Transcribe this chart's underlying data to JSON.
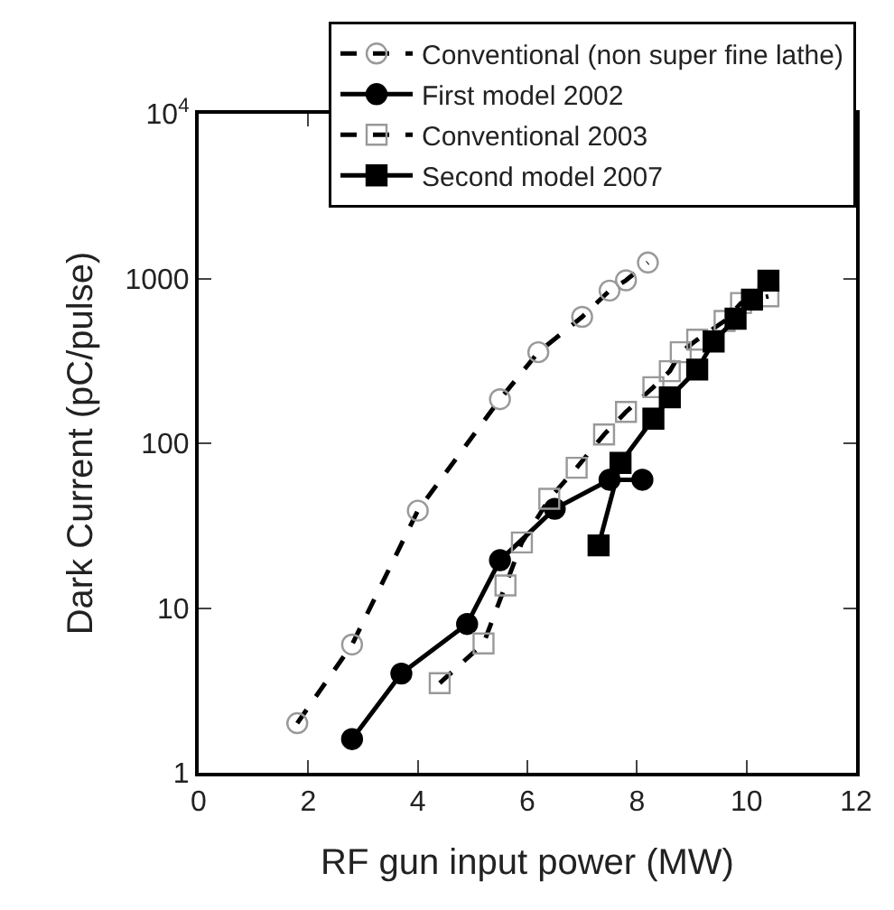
{
  "chart_data": {
    "type": "line",
    "xlabel": "RF gun input power (MW)",
    "ylabel": "Dark Current (pC/pulse)",
    "log": "y",
    "xlim": [
      0,
      12
    ],
    "xticks": [
      0,
      2,
      4,
      6,
      8,
      10,
      12
    ],
    "ylim": [
      1,
      10000
    ],
    "yticks": [
      1,
      10,
      100,
      1000,
      {
        "value": 10000,
        "label": "10$^{4}$"
      }
    ],
    "legend": "top right",
    "series": [
      {
        "name": "Conventional (non super fine lathe)",
        "color": "#000000",
        "marker": "circle",
        "line_style": "dashed",
        "x": [
          1.8,
          2.8,
          4.0,
          5.5,
          6.2,
          7.0,
          7.5,
          7.8,
          8.2
        ],
        "values": [
          2,
          6,
          39,
          185,
          357,
          585,
          845,
          975,
          1250
        ]
      },
      {
        "name": "First model 2002",
        "color": "#000000",
        "marker": "circle",
        "line_style": "solid",
        "x": [
          2.8,
          3.7,
          4.9,
          5.5,
          6.5,
          7.5,
          8.1
        ],
        "values": [
          1.6,
          4,
          8,
          19.5,
          40,
          60,
          60
        ]
      },
      {
        "name": "Conventional 2003",
        "color": "#000000",
        "marker": "square",
        "line_style": "dashed",
        "x": [
          4.4,
          5.2,
          5.6,
          5.9,
          6.4,
          6.9,
          7.4,
          7.8,
          8.3,
          8.6,
          8.8,
          9.1,
          9.6,
          9.9,
          10.4
        ],
        "values": [
          3.5,
          6.1,
          13.7,
          25,
          46,
          71,
          113,
          155,
          219,
          274,
          357,
          425,
          553,
          710,
          780
        ]
      },
      {
        "name": "Second model 2007",
        "color": "#000000",
        "marker": "square",
        "line_style": "solid",
        "x": [
          7.3,
          7.7,
          8.3,
          8.6,
          9.1,
          9.4,
          9.8,
          10.1,
          10.4
        ],
        "values": [
          24,
          76,
          141,
          190,
          280,
          415,
          570,
          745,
          970
        ]
      }
    ]
  }
}
